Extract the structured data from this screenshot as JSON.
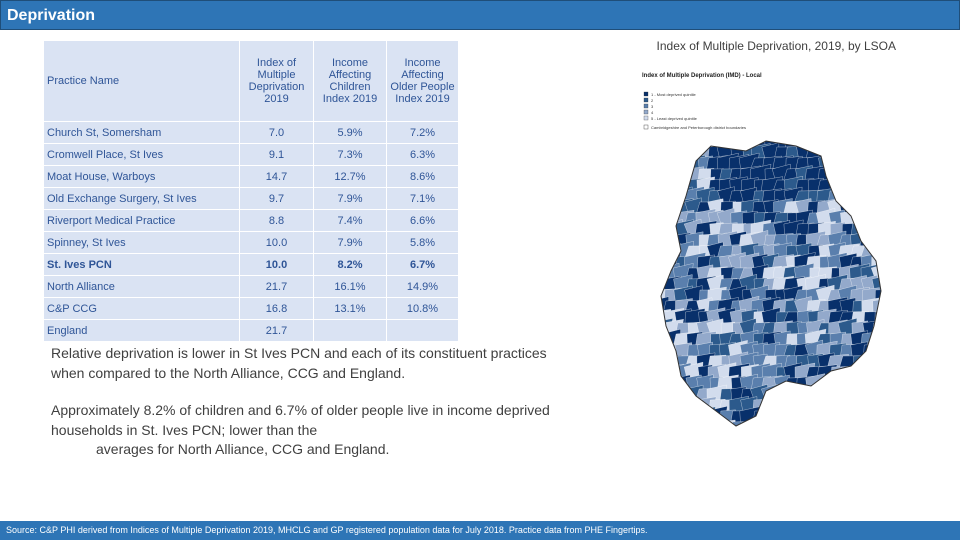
{
  "header": {
    "title": "Deprivation"
  },
  "table": {
    "columns": [
      "Practice Name",
      "Index of Multiple Deprivation 2019",
      "Income Affecting Children Index 2019",
      "Income Affecting Older People Index 2019"
    ],
    "rows": [
      [
        "Church St, Somersham",
        "7.0",
        "5.9%",
        "7.2%"
      ],
      [
        "Cromwell Place, St Ives",
        "9.1",
        "7.3%",
        "6.3%"
      ],
      [
        "Moat House, Warboys",
        "14.7",
        "12.7%",
        "8.6%"
      ],
      [
        "Old Exchange Surgery, St Ives",
        "9.7",
        "7.9%",
        "7.1%"
      ],
      [
        "Riverport Medical Practice",
        "8.8",
        "7.4%",
        "6.6%"
      ],
      [
        "Spinney, St Ives",
        "10.0",
        "7.9%",
        "5.8%"
      ],
      [
        "St. Ives PCN",
        "10.0",
        "8.2%",
        "6.7%"
      ],
      [
        "North Alliance",
        "21.7",
        "16.1%",
        "14.9%"
      ],
      [
        "C&P CCG",
        "16.8",
        "13.1%",
        "10.8%"
      ],
      [
        "England",
        "21.7"
      ]
    ],
    "bold_row": 6
  },
  "text": {
    "paragraph1": "Relative deprivation is lower in St Ives PCN and each of its constituent practices when compared to the North Alliance, CCG and England.",
    "paragraph2a": "Approximately 8.2% of children and 6.7% of older people live in income deprived households in St. Ives PCN; lower than the",
    "paragraph2b": "averages for North Alliance, CCG and England."
  },
  "map": {
    "caption": "Index of Multiple Deprivation, 2019, by LSOA",
    "title": "Index of Multiple Deprivation (IMD) - Local",
    "legend": [
      "1 - Most deprived quintile",
      "2",
      "3",
      "4",
      "5 - Least deprived quintile"
    ],
    "boundary": "Cambridgeshire and Peterborough district boundaries"
  },
  "footer": {
    "source": "Source: C&P PHI derived from Indices of Multiple Deprivation 2019, MHCLG and GP registered population data for July 2018. Practice data from PHE Fingertips."
  }
}
